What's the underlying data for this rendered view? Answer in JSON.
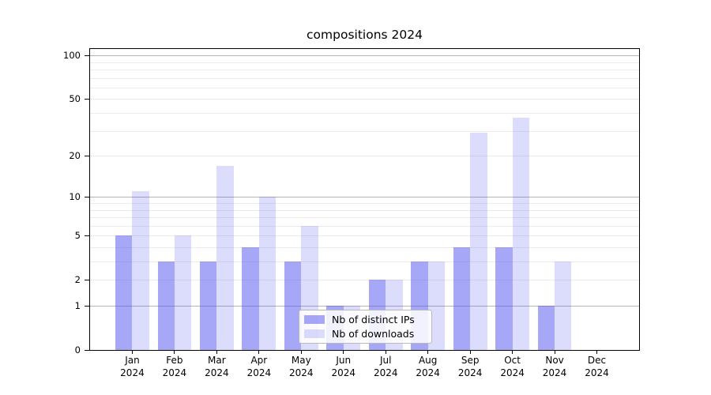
{
  "title": "compositions 2024",
  "legend": {
    "position": "lower center",
    "items": [
      {
        "label": "Nb of distinct IPs",
        "color": "rgba(80,80,240,0.5)"
      },
      {
        "label": "Nb of downloads",
        "color": "rgba(80,80,240,0.2)"
      }
    ]
  },
  "chart_data": {
    "type": "bar",
    "title": "compositions 2024",
    "categories": [
      "Jan 2024",
      "Feb 2024",
      "Mar 2024",
      "Apr 2024",
      "May 2024",
      "Jun 2024",
      "Jul 2024",
      "Aug 2024",
      "Sep 2024",
      "Oct 2024",
      "Nov 2024",
      "Dec 2024"
    ],
    "series": [
      {
        "name": "Nb of distinct IPs",
        "color": "rgba(80,80,240,0.5)",
        "values": [
          5,
          3,
          3,
          4,
          3,
          1,
          2,
          3,
          4,
          4,
          1,
          0
        ]
      },
      {
        "name": "Nb of downloads",
        "color": "rgba(80,80,240,0.2)",
        "values": [
          11,
          5,
          17,
          10,
          6,
          1,
          2,
          3,
          29,
          37,
          3,
          0
        ]
      }
    ],
    "xlabel": "",
    "ylabel": "",
    "yscale": "log1p",
    "ylim": [
      0,
      110
    ],
    "yticks": [
      0,
      1,
      2,
      5,
      10,
      20,
      50,
      100
    ],
    "gridlines": {
      "major": [
        1,
        10,
        100
      ],
      "minor": [
        2,
        3,
        4,
        5,
        6,
        7,
        8,
        9,
        20,
        30,
        40,
        50,
        60,
        70,
        80,
        90
      ]
    },
    "grid": true,
    "legend_position": "lower center"
  }
}
